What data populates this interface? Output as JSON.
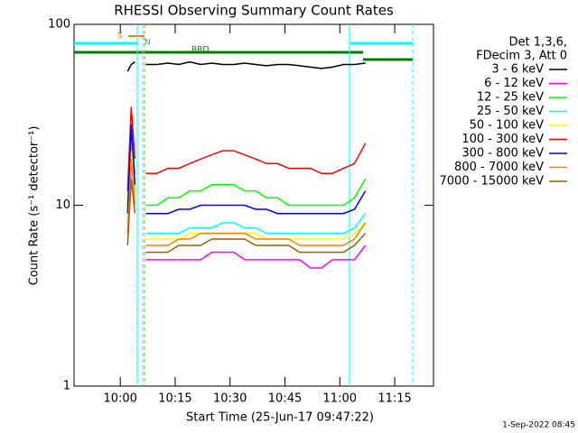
{
  "chart_data": {
    "type": "line",
    "title": "RHESSI Observing Summary Count Rates",
    "x_label": "Start Time (25-Jun-17 09:47:22)",
    "y_label": "Count Rate (s⁻¹ detector⁻¹)",
    "legend_header": [
      "Det 1,3,6,",
      "FDecim 3, Att 0"
    ],
    "footer": "1-Sep-2022 08:45",
    "annotations": [
      "S",
      "N",
      "RRD"
    ],
    "log_y": true,
    "xlim": [
      "09:47:22",
      "11:25:36"
    ],
    "xticks": [
      "10:00",
      "10:15",
      "10:30",
      "10:45",
      "11:00",
      "11:15"
    ],
    "ylim": [
      1,
      100
    ],
    "yticks": [
      1,
      10,
      100
    ],
    "x": [
      "10:02",
      "10:03",
      "10:04",
      "10:05",
      "10:07",
      "10:10",
      "10:13",
      "10:16",
      "10:19",
      "10:22",
      "10:25",
      "10:28",
      "10:31",
      "10:34",
      "10:37",
      "10:40",
      "10:43",
      "10:46",
      "10:49",
      "10:52",
      "10:55",
      "10:58",
      "11:01",
      "11:04",
      "11:07"
    ],
    "series": [
      {
        "name": "3 - 6 keV",
        "color": "#000000",
        "values": [
          55,
          60,
          62,
          null,
          60,
          60,
          61,
          60,
          62,
          60,
          61,
          60,
          60,
          61,
          60,
          59,
          60,
          60,
          59,
          58,
          57,
          58,
          60,
          60,
          61
        ]
      },
      {
        "name": "6 - 12 keV",
        "color": "#ff00ff",
        "values": [
          8,
          20,
          12,
          null,
          5,
          5,
          5,
          5,
          5,
          5,
          5.5,
          5.5,
          5.5,
          5,
          5,
          5,
          5,
          5,
          5,
          4.5,
          4.5,
          5,
          5,
          5,
          6
        ]
      },
      {
        "name": "12 - 25 keV",
        "color": "#00ff00",
        "values": [
          10,
          25,
          15,
          null,
          10,
          10,
          11,
          11,
          12,
          12,
          13,
          13,
          13,
          12,
          12,
          11,
          11,
          10,
          10,
          10,
          10,
          10,
          10,
          11,
          14
        ]
      },
      {
        "name": "25 - 50 keV",
        "color": "#00ffff",
        "values": [
          9,
          22,
          12,
          null,
          7,
          7,
          7,
          7,
          7.5,
          7.5,
          7.5,
          8,
          8,
          7.5,
          7.5,
          7,
          7,
          7,
          7,
          7,
          7,
          7,
          7,
          7.5,
          9
        ]
      },
      {
        "name": "50 - 100 keV",
        "color": "#ffff00",
        "values": [
          8,
          20,
          11,
          null,
          6.5,
          6.5,
          6.5,
          6.5,
          7,
          7,
          7,
          7,
          7,
          7,
          7,
          6.5,
          6.5,
          6.5,
          6.5,
          6.5,
          6.5,
          6.5,
          6.5,
          7,
          8
        ]
      },
      {
        "name": "100 - 300 keV",
        "color": "#ff0000",
        "values": [
          12,
          35,
          18,
          null,
          15,
          15,
          16,
          16,
          17,
          18,
          19,
          20,
          20,
          19,
          18,
          17,
          17,
          16,
          16,
          16,
          15,
          15,
          16,
          17,
          22
        ]
      },
      {
        "name": "300 - 800 keV",
        "color": "#0000ff",
        "values": [
          9,
          28,
          13,
          null,
          9,
          9,
          9,
          9.5,
          9.5,
          10,
          10,
          10,
          10,
          10,
          9.5,
          9.5,
          9,
          9,
          9,
          9,
          9,
          9,
          9,
          9.5,
          12
        ]
      },
      {
        "name": "800 - 7000 keV",
        "color": "#ff8000",
        "values": [
          7,
          18,
          10,
          null,
          6,
          6,
          6,
          6.5,
          6.5,
          7,
          7,
          7,
          7,
          7,
          6.5,
          6.5,
          6.5,
          6.5,
          6,
          6,
          6,
          6,
          6,
          6.5,
          8
        ]
      },
      {
        "name": "7000 - 15000 keV",
        "color": "#a06000",
        "values": [
          6,
          14,
          9,
          null,
          5.5,
          5.5,
          5.5,
          6,
          6,
          6,
          6.5,
          6.5,
          6.5,
          6.5,
          6,
          6,
          6,
          6,
          5.5,
          5.5,
          5.5,
          5.5,
          5.5,
          6,
          7
        ]
      }
    ]
  }
}
